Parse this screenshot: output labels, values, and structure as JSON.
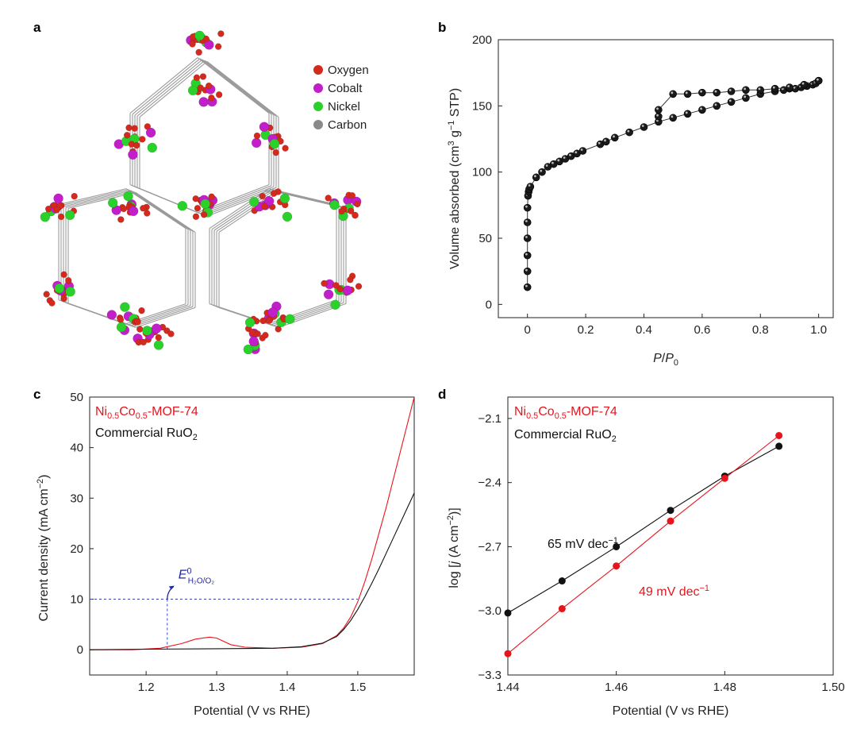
{
  "panels": {
    "a": "a",
    "b": "b",
    "c": "c",
    "d": "d"
  },
  "legend_a": [
    {
      "label": "Oxygen",
      "color": "#d42a1e"
    },
    {
      "label": "Cobalt",
      "color": "#c21ec9"
    },
    {
      "label": "Nickel",
      "color": "#2bd12b"
    },
    {
      "label": "Carbon",
      "color": "#8a8a8a"
    }
  ],
  "chart_data": [
    {
      "panel": "b",
      "type": "scatter",
      "title": "",
      "xlabel": "P/P0",
      "ylabel": "Volume absorbed (cm3 g−1 STP)",
      "xlim": [
        -0.1,
        1.05
      ],
      "ylim": [
        -10,
        200
      ],
      "xticks": [
        0,
        0.2,
        0.4,
        0.6,
        0.8,
        1.0
      ],
      "xtick_labels": [
        "0",
        "0.2",
        "0.4",
        "0.6",
        "0.8",
        "1.0"
      ],
      "yticks": [
        0,
        50,
        100,
        150,
        200
      ],
      "ytick_labels": [
        "0",
        "50",
        "100",
        "150",
        "200"
      ],
      "series": [
        {
          "name": "adsorption",
          "color": "#111111",
          "x": [
            0.0,
            0.0,
            0.0,
            0.0,
            0.0,
            0.0,
            0.002,
            0.004,
            0.006,
            0.01,
            0.03,
            0.05,
            0.07,
            0.09,
            0.11,
            0.13,
            0.15,
            0.17,
            0.19,
            0.25,
            0.27,
            0.3,
            0.35,
            0.4,
            0.45,
            0.5,
            0.55,
            0.6,
            0.65,
            0.7,
            0.75,
            0.8,
            0.85,
            0.88,
            0.9,
            0.92,
            0.94,
            0.96,
            0.98,
            0.99,
            1.0
          ],
          "y": [
            13,
            25,
            37,
            50,
            62,
            73,
            82,
            85,
            87,
            89,
            96,
            100,
            104,
            106,
            108,
            110,
            112,
            114,
            116,
            121,
            123,
            126,
            130,
            134,
            138,
            141,
            144,
            147,
            150,
            153,
            156,
            159,
            161,
            162,
            163,
            163,
            164,
            165,
            166,
            167,
            169
          ]
        },
        {
          "name": "desorption",
          "color": "#111111",
          "x": [
            1.0,
            0.95,
            0.9,
            0.85,
            0.8,
            0.75,
            0.7,
            0.65,
            0.6,
            0.55,
            0.5,
            0.45,
            0.45
          ],
          "y": [
            169,
            166,
            164,
            163,
            162,
            162,
            161,
            160,
            160,
            159,
            159,
            147,
            142
          ]
        }
      ]
    },
    {
      "panel": "c",
      "type": "line",
      "title": "",
      "xlabel": "Potential (V vs RHE)",
      "ylabel": "Current density (mA cm−2)",
      "xlim": [
        1.12,
        1.58
      ],
      "ylim": [
        -5,
        50
      ],
      "xticks": [
        1.2,
        1.3,
        1.4,
        1.5
      ],
      "xtick_labels": [
        "1.2",
        "1.3",
        "1.4",
        "1.5"
      ],
      "yticks": [
        0,
        10,
        20,
        30,
        40,
        50
      ],
      "ytick_labels": [
        "0",
        "10",
        "20",
        "30",
        "40",
        "50"
      ],
      "annotation": {
        "label": "E0 H2O/O2",
        "x": 1.23,
        "y": 10
      },
      "series": [
        {
          "name": "Ni0.5Co0.5-MOF-74",
          "color": "#e8141c",
          "x": [
            1.12,
            1.18,
            1.22,
            1.25,
            1.27,
            1.29,
            1.3,
            1.32,
            1.34,
            1.38,
            1.42,
            1.45,
            1.47,
            1.48,
            1.49,
            1.5,
            1.51,
            1.52,
            1.53,
            1.54,
            1.55,
            1.56,
            1.57,
            1.58
          ],
          "y": [
            0,
            0,
            0.3,
            1.2,
            2.1,
            2.5,
            2.3,
            1.0,
            0.5,
            0.3,
            0.5,
            1.2,
            2.8,
            4.3,
            6.5,
            9.5,
            13.5,
            18,
            23,
            28,
            33.5,
            39,
            44.5,
            50
          ]
        },
        {
          "name": "Commercial RuO2",
          "color": "#111111",
          "x": [
            1.12,
            1.2,
            1.3,
            1.38,
            1.42,
            1.45,
            1.47,
            1.48,
            1.49,
            1.5,
            1.51,
            1.52,
            1.53,
            1.54,
            1.55,
            1.56,
            1.57,
            1.58
          ],
          "y": [
            0,
            0.1,
            0.2,
            0.3,
            0.6,
            1.3,
            2.6,
            4.0,
            5.8,
            8.0,
            10.5,
            13.2,
            16.0,
            19.0,
            22.0,
            25.0,
            28.0,
            31.0
          ]
        }
      ]
    },
    {
      "panel": "d",
      "type": "line",
      "title": "",
      "xlabel": "Potential (V vs RHE)",
      "ylabel": "log [j (A cm−2)]",
      "xlim": [
        1.44,
        1.5
      ],
      "ylim": [
        -3.3,
        -2.0
      ],
      "xticks": [
        1.44,
        1.46,
        1.48,
        1.5
      ],
      "xtick_labels": [
        "1.44",
        "1.46",
        "1.48",
        "1.50"
      ],
      "yticks": [
        -3.3,
        -3.0,
        -2.7,
        -2.4,
        -2.1
      ],
      "ytick_labels": [
        "−3.3",
        "−3.0",
        "−2.7",
        "−2.4",
        "−2.1"
      ],
      "series": [
        {
          "name": "Commercial RuO2",
          "color": "#111111",
          "x": [
            1.44,
            1.45,
            1.46,
            1.47,
            1.48,
            1.49
          ],
          "y": [
            -3.01,
            -2.86,
            -2.7,
            -2.53,
            -2.37,
            -2.23
          ]
        },
        {
          "name": "Ni0.5Co0.5-MOF-74",
          "color": "#e8141c",
          "x": [
            1.44,
            1.45,
            1.46,
            1.47,
            1.48,
            1.49
          ],
          "y": [
            -3.2,
            -2.99,
            -2.79,
            -2.58,
            -2.38,
            -2.18
          ]
        }
      ],
      "slope_labels": [
        "65 mV dec−1",
        "49 mV dec−1"
      ]
    }
  ]
}
